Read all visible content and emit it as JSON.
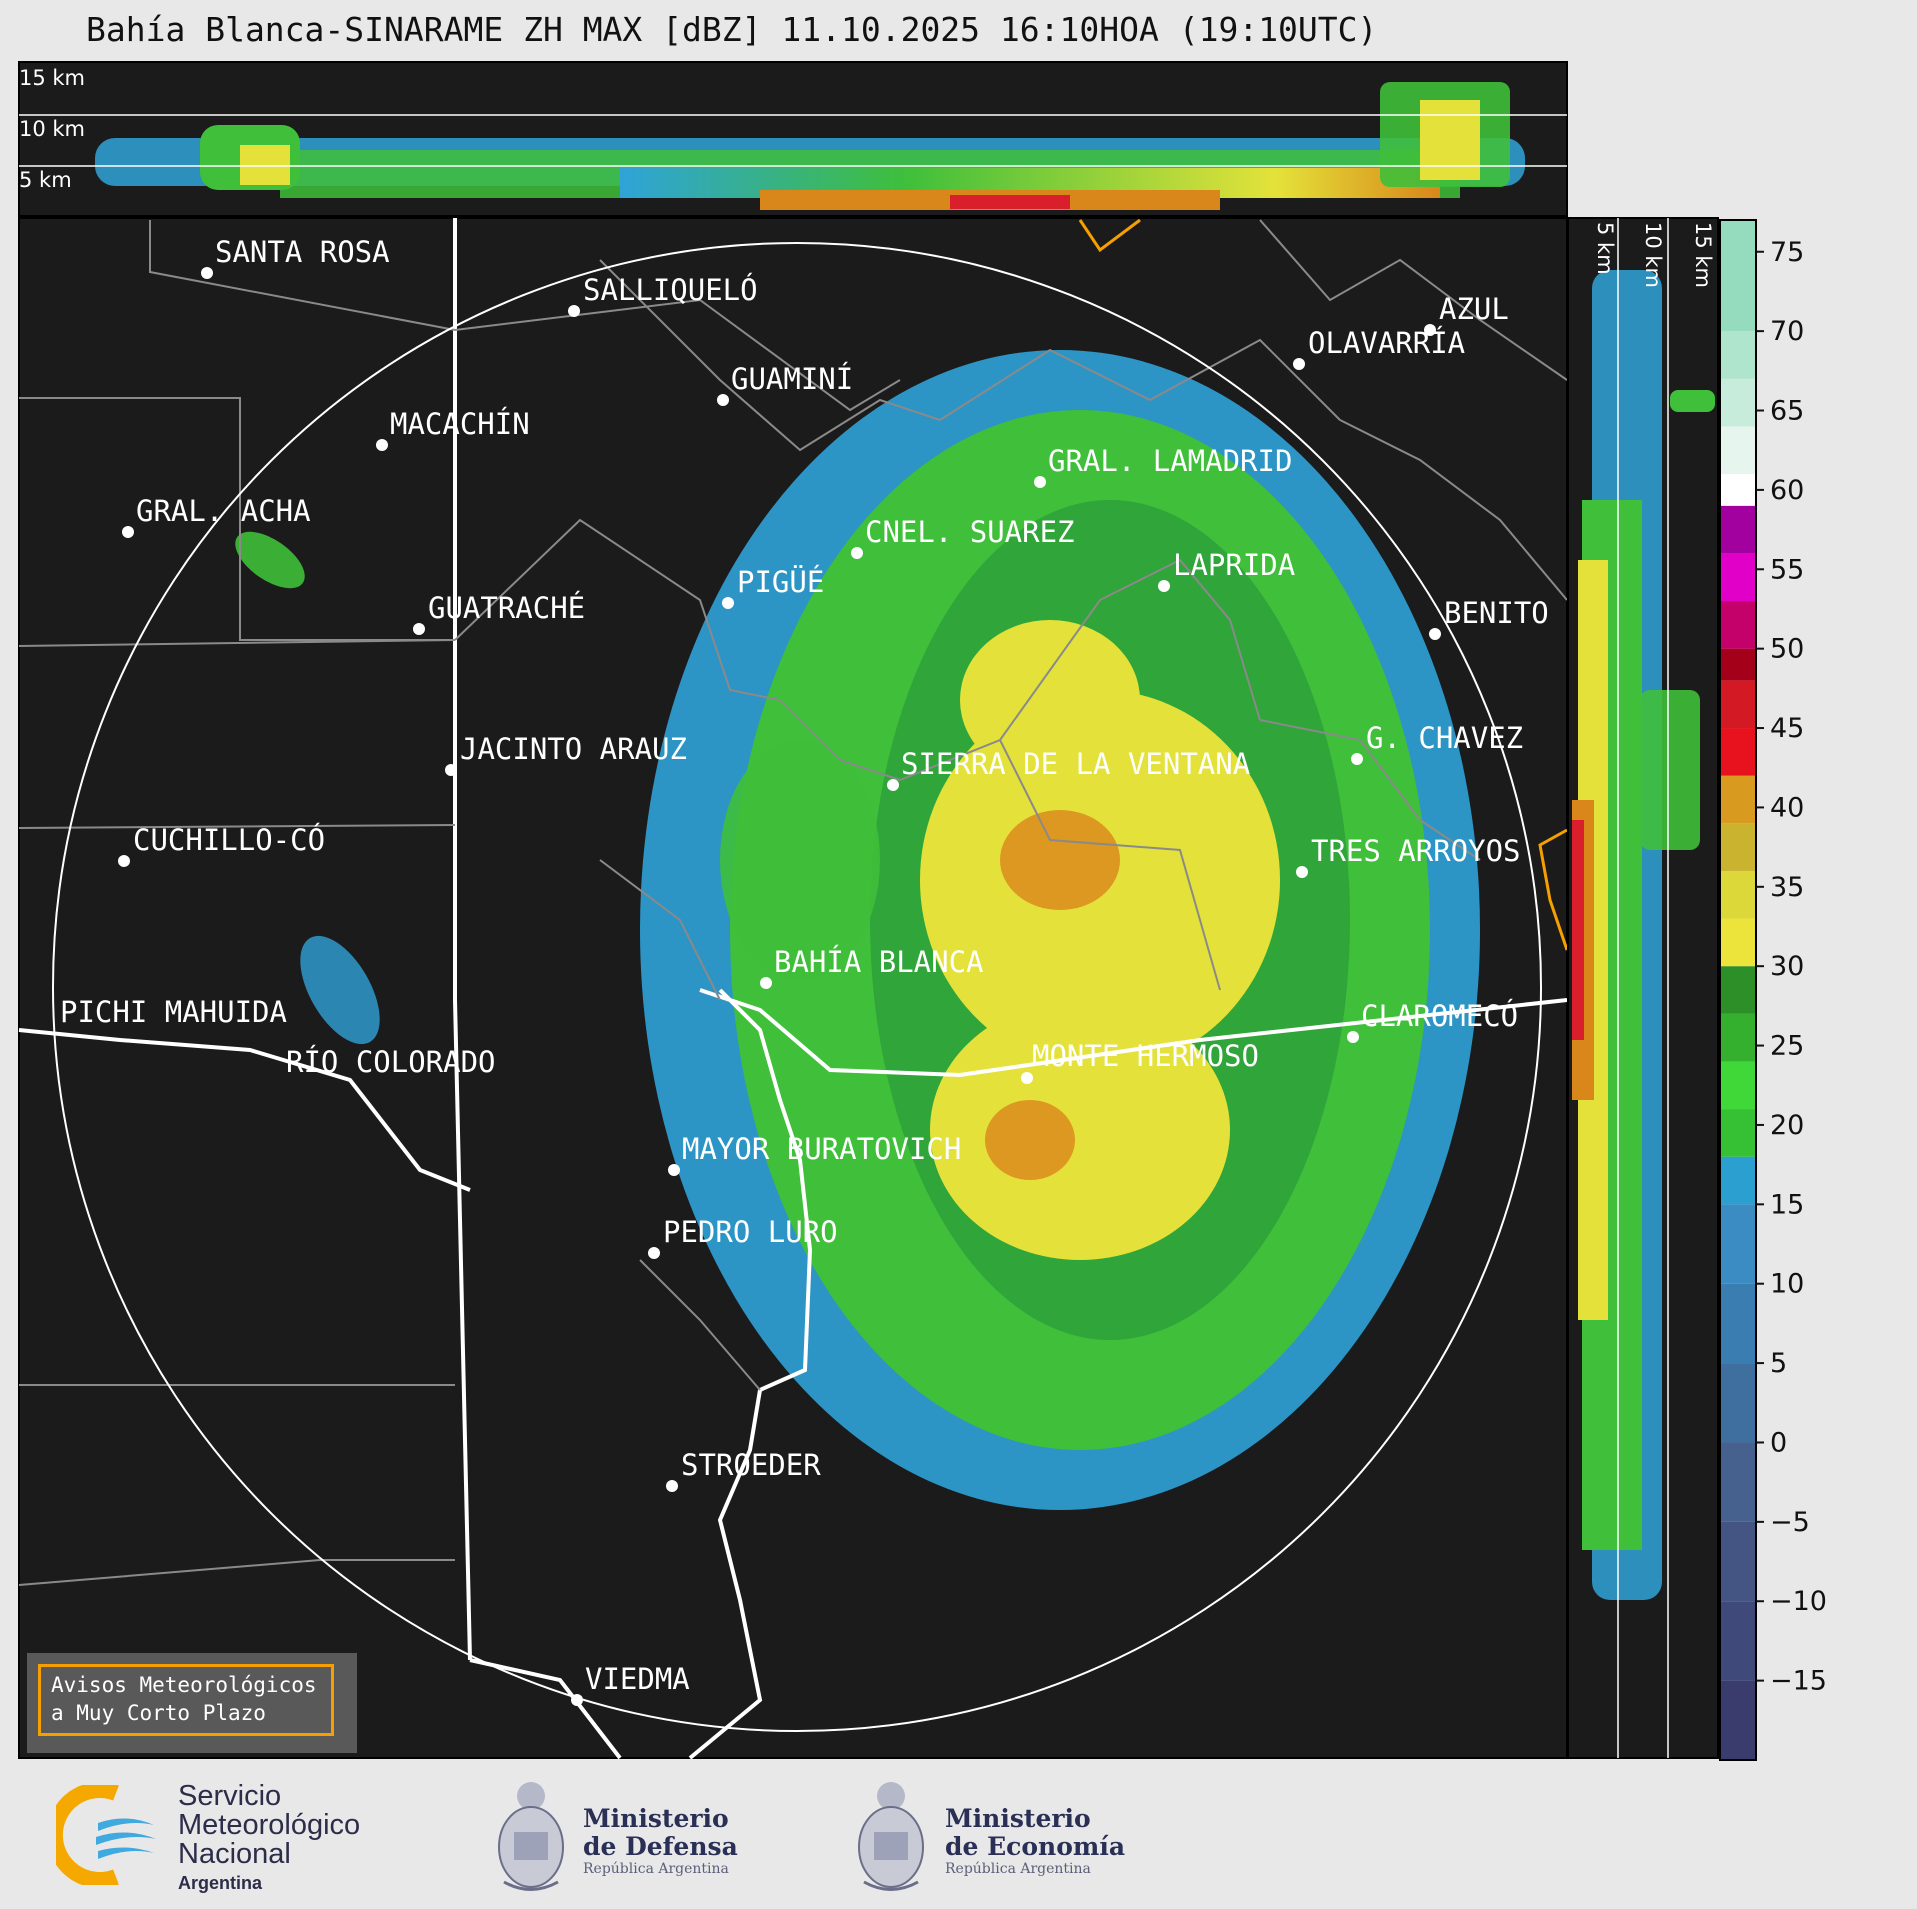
{
  "title": "Bahía Blanca-SINARAME ZH MAX [dBZ] 11.10.2025 16:10HOA (19:10UTC)",
  "top_panel": {
    "altitude_labels": [
      "15 km",
      "10 km",
      "5 km"
    ]
  },
  "side_panel": {
    "altitude_labels": [
      "5 km",
      "10 km",
      "15 km"
    ]
  },
  "colorbar": {
    "ticks": [
      "75",
      "70",
      "65",
      "60",
      "55",
      "50",
      "45",
      "40",
      "35",
      "30",
      "25",
      "20",
      "15",
      "10",
      "5",
      "0",
      "−5",
      "−10",
      "−15"
    ],
    "min": -20,
    "max": 77
  },
  "places": [
    {
      "name": "SANTA ROSA"
    },
    {
      "name": "SALLIQUELÓ"
    },
    {
      "name": "GUAMINÍ"
    },
    {
      "name": "MACACHÍN"
    },
    {
      "name": "GRAL. ACHA"
    },
    {
      "name": "AZUL"
    },
    {
      "name": "OLAVARRÍA"
    },
    {
      "name": "GRAL. LAMADRID"
    },
    {
      "name": "CNEL. SUAREZ"
    },
    {
      "name": "LAPRIDA"
    },
    {
      "name": "PIGÜÉ"
    },
    {
      "name": "GUATRACHÉ"
    },
    {
      "name": "BENITO"
    },
    {
      "name": "JACINTO ARAUZ"
    },
    {
      "name": "G. CHAVEZ"
    },
    {
      "name": "SIERRA DE LA VENTANA"
    },
    {
      "name": "CUCHILLO-CÓ"
    },
    {
      "name": "TRES ARROYOS"
    },
    {
      "name": "BAHÍA BLANCA"
    },
    {
      "name": "PICHI MAHUIDA"
    },
    {
      "name": "CLAROMECÓ"
    },
    {
      "name": "MONTE HERMOSO"
    },
    {
      "name": "RÍO COLORADO"
    },
    {
      "name": "MAYOR BURATOVICH"
    },
    {
      "name": "PEDRO LURO"
    },
    {
      "name": "STROEDER"
    },
    {
      "name": "VIEDMA"
    }
  ],
  "alerts": {
    "line1": "Avisos Meteorológicos",
    "line2": "a Muy Corto Plazo"
  },
  "logos": {
    "smn": {
      "line1": "Servicio",
      "line2": "Meteorológico",
      "line3": "Nacional",
      "line4": "Argentina"
    },
    "defensa": {
      "line1": "Ministerio",
      "line2": "de Defensa",
      "line3": "República Argentina"
    },
    "economia": {
      "line1": "Ministerio",
      "line2": "de Economía",
      "line3": "República Argentina"
    }
  }
}
